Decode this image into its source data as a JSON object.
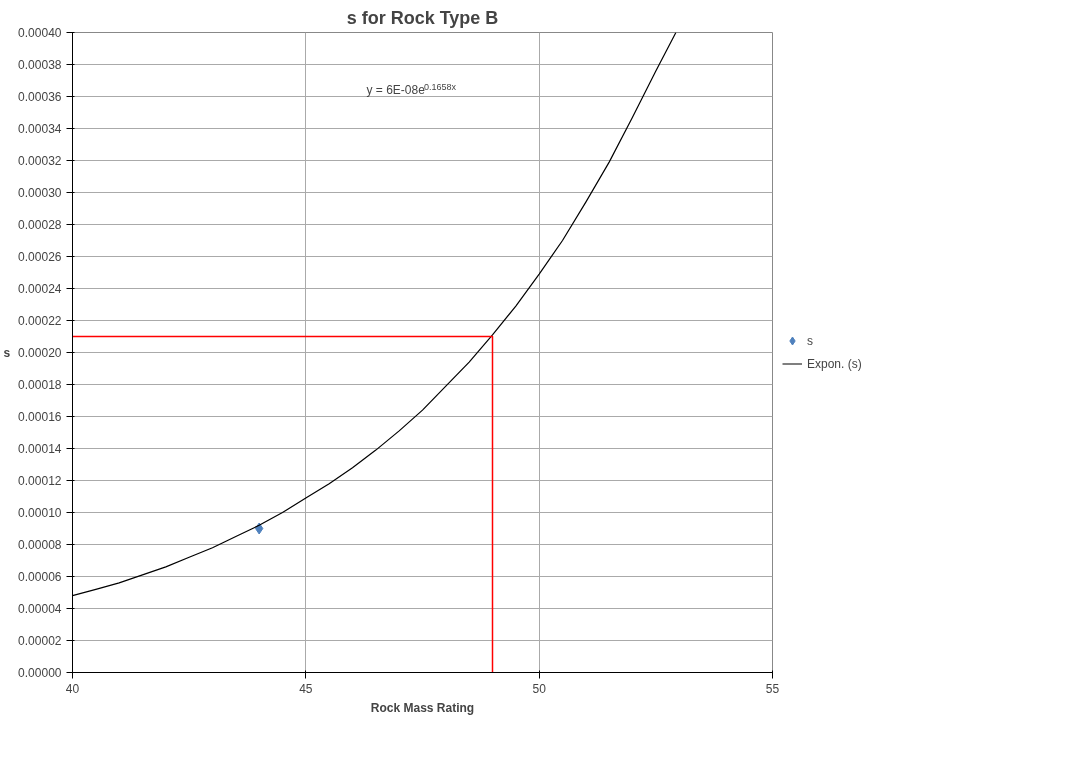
{
  "chart_data": {
    "type": "scatter",
    "title": "s for Rock Type B",
    "xlabel": "Rock Mass Rating",
    "ylabel": "s",
    "annotations": [
      "y = 6E-08e$^{0.1658x}$"
    ],
    "series": [
      {
        "name": "s",
        "color": "#4f81bd",
        "marker": "diamond",
        "x": [
          44
        ],
        "values": [
          9e-05
        ]
      },
      {
        "name": "Expon. (s)",
        "type": "line",
        "color": "#000000",
        "x": [
          40,
          40.5,
          41,
          41.5,
          42,
          42.5,
          43,
          43.5,
          44,
          44.5,
          45,
          45.5,
          46,
          46.5,
          47,
          47.5,
          48,
          48.5,
          49,
          49.5,
          50,
          50.5,
          51,
          51.5,
          52,
          52.5,
          52.93
        ],
        "values": [
          4.8e-05,
          5.2e-05,
          5.6e-05,
          6.1e-05,
          6.6e-05,
          7.2e-05,
          7.8e-05,
          8.5e-05,
          9.2e-05,
          0.0001,
          0.000109,
          0.000118,
          0.000128,
          0.000139,
          0.000151,
          0.000164,
          0.000179,
          0.000194,
          0.000211,
          0.000229,
          0.000249,
          0.00027,
          0.000294,
          0.000319,
          0.000347,
          0.000376,
          0.0004
        ]
      },
      {
        "type": "line",
        "color": "#ff0000",
        "x": [
          40,
          49,
          49
        ],
        "values": [
          0.00021,
          0.00021,
          0
        ]
      }
    ],
    "xlim": [
      40,
      55
    ],
    "xticks": [
      40,
      45,
      50,
      55
    ],
    "ylim": [
      0,
      0.0004
    ],
    "yticks": [
      {
        "value": 0,
        "label": "0.00000"
      },
      {
        "value": 2e-05,
        "label": "0.00002"
      },
      {
        "value": 4e-05,
        "label": "0.00004"
      },
      {
        "value": 6e-05,
        "label": "0.00006"
      },
      {
        "value": 8e-05,
        "label": "0.00008"
      },
      {
        "value": 0.0001,
        "label": "0.00010"
      },
      {
        "value": 0.00012,
        "label": "0.00012"
      },
      {
        "value": 0.00014,
        "label": "0.00014"
      },
      {
        "value": 0.00016,
        "label": "0.00016"
      },
      {
        "value": 0.00018,
        "label": "0.00018"
      },
      {
        "value": 0.0002,
        "label": "0.00020"
      },
      {
        "value": 0.00022,
        "label": "0.00022"
      },
      {
        "value": 0.00024,
        "label": "0.00024"
      },
      {
        "value": 0.00026,
        "label": "0.00026"
      },
      {
        "value": 0.00028,
        "label": "0.00028"
      },
      {
        "value": 0.0003,
        "label": "0.00030"
      },
      {
        "value": 0.00032,
        "label": "0.00032"
      },
      {
        "value": 0.00034,
        "label": "0.00034"
      },
      {
        "value": 0.00036,
        "label": "0.00036"
      },
      {
        "value": 0.00038,
        "label": "0.00038"
      },
      {
        "value": 0.0004,
        "label": "0.00040"
      }
    ],
    "grid": true,
    "legend": "right"
  }
}
